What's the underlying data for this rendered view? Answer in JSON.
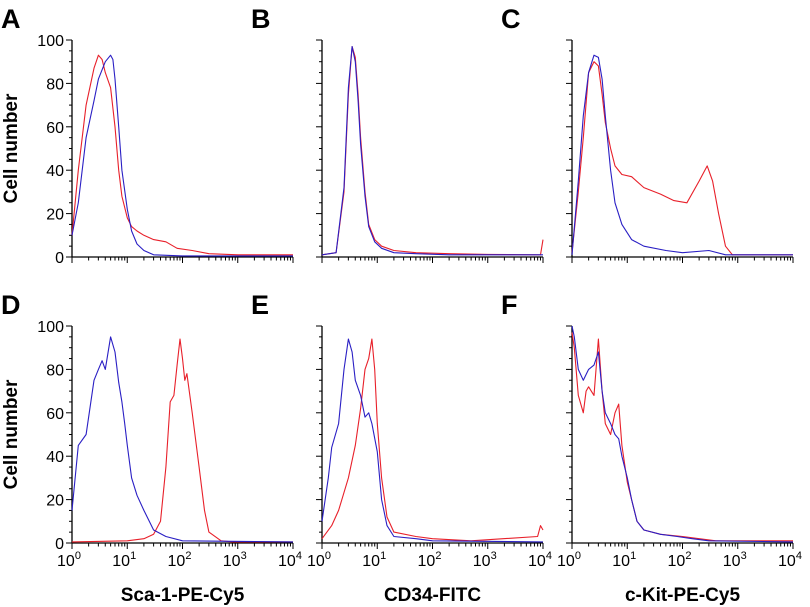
{
  "figure": {
    "shared_ylabel": "Cell number",
    "colors": {
      "red": "#e8202a",
      "blue": "#2a1fc4"
    }
  },
  "chart_data": [
    {
      "panel": "A",
      "type": "line",
      "xscale": "log",
      "xlim": [
        1,
        10000
      ],
      "ylim": [
        0,
        100
      ],
      "yticks": [
        "0",
        "20",
        "40",
        "60",
        "80",
        "100"
      ],
      "xticks": [],
      "xlabel": "",
      "series": [
        {
          "color": "red",
          "points": [
            [
              1,
              10
            ],
            [
              1.3,
              40
            ],
            [
              1.8,
              70
            ],
            [
              2.5,
              87
            ],
            [
              3,
              93
            ],
            [
              3.5,
              91
            ],
            [
              4,
              85
            ],
            [
              5,
              78
            ],
            [
              6,
              60
            ],
            [
              7,
              40
            ],
            [
              8,
              28
            ],
            [
              10,
              18
            ],
            [
              12,
              14
            ],
            [
              15,
              12
            ],
            [
              20,
              10
            ],
            [
              30,
              8
            ],
            [
              50,
              7
            ],
            [
              80,
              4
            ],
            [
              150,
              3
            ],
            [
              300,
              1.5
            ],
            [
              1000,
              1
            ],
            [
              10000,
              1
            ]
          ]
        },
        {
          "color": "blue",
          "points": [
            [
              1,
              10
            ],
            [
              1.3,
              25
            ],
            [
              1.8,
              55
            ],
            [
              2.5,
              72
            ],
            [
              3,
              82
            ],
            [
              4,
              90
            ],
            [
              5,
              93
            ],
            [
              5.5,
              91
            ],
            [
              6,
              82
            ],
            [
              7,
              60
            ],
            [
              8,
              40
            ],
            [
              10,
              22
            ],
            [
              12,
              12
            ],
            [
              15,
              6
            ],
            [
              20,
              3
            ],
            [
              30,
              1
            ],
            [
              100,
              0.5
            ],
            [
              10000,
              0.5
            ]
          ]
        }
      ]
    },
    {
      "panel": "B",
      "type": "line",
      "xscale": "log",
      "xlim": [
        1,
        10000
      ],
      "ylim": [
        0,
        100
      ],
      "yticks": [],
      "xticks": [],
      "xlabel": "",
      "series": [
        {
          "color": "red",
          "points": [
            [
              1,
              1
            ],
            [
              1.8,
              2
            ],
            [
              2.5,
              30
            ],
            [
              3,
              75
            ],
            [
              3.5,
              97
            ],
            [
              4,
              92
            ],
            [
              4.5,
              75
            ],
            [
              5,
              55
            ],
            [
              6,
              30
            ],
            [
              7,
              15
            ],
            [
              9,
              8
            ],
            [
              12,
              5
            ],
            [
              20,
              3
            ],
            [
              50,
              2
            ],
            [
              200,
              1.5
            ],
            [
              1000,
              1.2
            ],
            [
              9000,
              1
            ],
            [
              10000,
              8
            ]
          ]
        },
        {
          "color": "blue",
          "points": [
            [
              1,
              1
            ],
            [
              1.8,
              2
            ],
            [
              2.5,
              32
            ],
            [
              3,
              78
            ],
            [
              3.5,
              97
            ],
            [
              4,
              90
            ],
            [
              4.5,
              72
            ],
            [
              5,
              52
            ],
            [
              6,
              28
            ],
            [
              7,
              14
            ],
            [
              9,
              7
            ],
            [
              12,
              4
            ],
            [
              20,
              2
            ],
            [
              50,
              1.5
            ],
            [
              200,
              1
            ],
            [
              1000,
              1
            ],
            [
              10000,
              1
            ]
          ]
        }
      ]
    },
    {
      "panel": "C",
      "type": "line",
      "xscale": "log",
      "xlim": [
        1,
        10000
      ],
      "ylim": [
        0,
        100
      ],
      "yticks": [],
      "xticks": [],
      "xlabel": "",
      "series": [
        {
          "color": "red",
          "points": [
            [
              1,
              2
            ],
            [
              1.3,
              30
            ],
            [
              1.6,
              55
            ],
            [
              2,
              85
            ],
            [
              2.5,
              90
            ],
            [
              3,
              88
            ],
            [
              3.5,
              75
            ],
            [
              4,
              62
            ],
            [
              5,
              50
            ],
            [
              6,
              42
            ],
            [
              8,
              38
            ],
            [
              12,
              37
            ],
            [
              20,
              32
            ],
            [
              40,
              29
            ],
            [
              70,
              26
            ],
            [
              120,
              25
            ],
            [
              200,
              35
            ],
            [
              280,
              42
            ],
            [
              350,
              35
            ],
            [
              450,
              20
            ],
            [
              600,
              5
            ],
            [
              800,
              1
            ],
            [
              10000,
              1
            ]
          ]
        },
        {
          "color": "blue",
          "points": [
            [
              1,
              1
            ],
            [
              1.3,
              35
            ],
            [
              1.6,
              65
            ],
            [
              2,
              85
            ],
            [
              2.5,
              93
            ],
            [
              3,
              92
            ],
            [
              3.5,
              82
            ],
            [
              4,
              65
            ],
            [
              5,
              40
            ],
            [
              6,
              25
            ],
            [
              8,
              15
            ],
            [
              12,
              8
            ],
            [
              20,
              5
            ],
            [
              50,
              3
            ],
            [
              100,
              2
            ],
            [
              300,
              3
            ],
            [
              600,
              1
            ],
            [
              10000,
              1
            ]
          ]
        }
      ]
    },
    {
      "panel": "D",
      "type": "line",
      "xscale": "log",
      "xlim": [
        1,
        10000
      ],
      "ylim": [
        0,
        100
      ],
      "yticks": [
        "0",
        "20",
        "40",
        "60",
        "80",
        "100"
      ],
      "xticks": [
        "10^0",
        "10^1",
        "10^2",
        "10^3",
        "10^4"
      ],
      "xlabel": "Sca-1-PE-Cy5",
      "series": [
        {
          "color": "red",
          "points": [
            [
              1,
              0.5
            ],
            [
              10,
              1
            ],
            [
              20,
              2
            ],
            [
              30,
              4
            ],
            [
              40,
              10
            ],
            [
              50,
              35
            ],
            [
              60,
              65
            ],
            [
              70,
              68
            ],
            [
              80,
              82
            ],
            [
              90,
              94
            ],
            [
              100,
              85
            ],
            [
              110,
              75
            ],
            [
              120,
              78
            ],
            [
              150,
              60
            ],
            [
              200,
              35
            ],
            [
              250,
              15
            ],
            [
              300,
              5
            ],
            [
              500,
              1
            ],
            [
              800,
              0.5
            ],
            [
              10000,
              0.5
            ]
          ]
        },
        {
          "color": "blue",
          "points": [
            [
              1,
              15
            ],
            [
              1.3,
              45
            ],
            [
              1.8,
              50
            ],
            [
              2.5,
              75
            ],
            [
              3,
              80
            ],
            [
              3.5,
              84
            ],
            [
              4,
              80
            ],
            [
              5,
              95
            ],
            [
              6,
              88
            ],
            [
              7,
              74
            ],
            [
              8,
              65
            ],
            [
              9,
              55
            ],
            [
              10,
              45
            ],
            [
              12,
              30
            ],
            [
              15,
              22
            ],
            [
              20,
              15
            ],
            [
              30,
              6
            ],
            [
              50,
              3
            ],
            [
              100,
              1
            ],
            [
              10000,
              0.5
            ]
          ]
        }
      ]
    },
    {
      "panel": "E",
      "type": "line",
      "xscale": "log",
      "xlim": [
        1,
        10000
      ],
      "ylim": [
        0,
        100
      ],
      "yticks": [],
      "xticks": [
        "10^0",
        "10^1",
        "10^2",
        "10^3",
        "10^4"
      ],
      "xlabel": "CD34-FITC",
      "series": [
        {
          "color": "red",
          "points": [
            [
              1,
              2
            ],
            [
              1.5,
              8
            ],
            [
              2,
              15
            ],
            [
              3,
              30
            ],
            [
              4,
              45
            ],
            [
              5,
              62
            ],
            [
              6,
              80
            ],
            [
              7,
              85
            ],
            [
              8,
              94
            ],
            [
              9,
              80
            ],
            [
              10,
              55
            ],
            [
              12,
              30
            ],
            [
              15,
              12
            ],
            [
              20,
              5
            ],
            [
              50,
              3
            ],
            [
              100,
              2
            ],
            [
              500,
              1
            ],
            [
              8000,
              3
            ],
            [
              9000,
              8
            ],
            [
              10000,
              6
            ]
          ]
        },
        {
          "color": "blue",
          "points": [
            [
              1,
              10
            ],
            [
              1.3,
              30
            ],
            [
              1.5,
              44
            ],
            [
              2,
              55
            ],
            [
              2.5,
              80
            ],
            [
              3,
              94
            ],
            [
              3.5,
              88
            ],
            [
              4,
              75
            ],
            [
              5,
              68
            ],
            [
              6,
              58
            ],
            [
              7,
              60
            ],
            [
              8,
              55
            ],
            [
              10,
              42
            ],
            [
              12,
              20
            ],
            [
              15,
              8
            ],
            [
              20,
              3
            ],
            [
              50,
              2
            ],
            [
              100,
              1
            ],
            [
              10000,
              0.5
            ]
          ]
        }
      ]
    },
    {
      "panel": "F",
      "type": "line",
      "xscale": "log",
      "xlim": [
        1,
        10000
      ],
      "ylim": [
        0,
        100
      ],
      "yticks": [],
      "xticks": [
        "10^0",
        "10^1",
        "10^2",
        "10^3",
        "10^4"
      ],
      "xlabel": "c-Kit-PE-Cy5",
      "series": [
        {
          "color": "red",
          "points": [
            [
              1,
              97
            ],
            [
              1.1,
              90
            ],
            [
              1.3,
              68
            ],
            [
              1.6,
              60
            ],
            [
              1.8,
              70
            ],
            [
              2,
              72
            ],
            [
              2.5,
              68
            ],
            [
              3,
              94
            ],
            [
              3.5,
              70
            ],
            [
              4,
              55
            ],
            [
              5,
              50
            ],
            [
              6,
              60
            ],
            [
              7,
              64
            ],
            [
              8,
              45
            ],
            [
              10,
              28
            ],
            [
              12,
              20
            ],
            [
              15,
              10
            ],
            [
              20,
              6
            ],
            [
              40,
              4
            ],
            [
              100,
              3
            ],
            [
              200,
              2
            ],
            [
              400,
              1
            ],
            [
              10000,
              1
            ]
          ]
        },
        {
          "color": "blue",
          "points": [
            [
              1,
              100
            ],
            [
              1.1,
              95
            ],
            [
              1.3,
              80
            ],
            [
              1.6,
              75
            ],
            [
              2,
              80
            ],
            [
              2.5,
              82
            ],
            [
              3,
              88
            ],
            [
              3.5,
              70
            ],
            [
              4,
              60
            ],
            [
              5,
              55
            ],
            [
              6,
              50
            ],
            [
              7,
              48
            ],
            [
              8,
              40
            ],
            [
              10,
              30
            ],
            [
              12,
              20
            ],
            [
              15,
              10
            ],
            [
              20,
              6
            ],
            [
              40,
              4
            ],
            [
              80,
              3
            ],
            [
              150,
              2
            ],
            [
              300,
              1
            ],
            [
              10000,
              0.5
            ]
          ]
        }
      ]
    }
  ]
}
